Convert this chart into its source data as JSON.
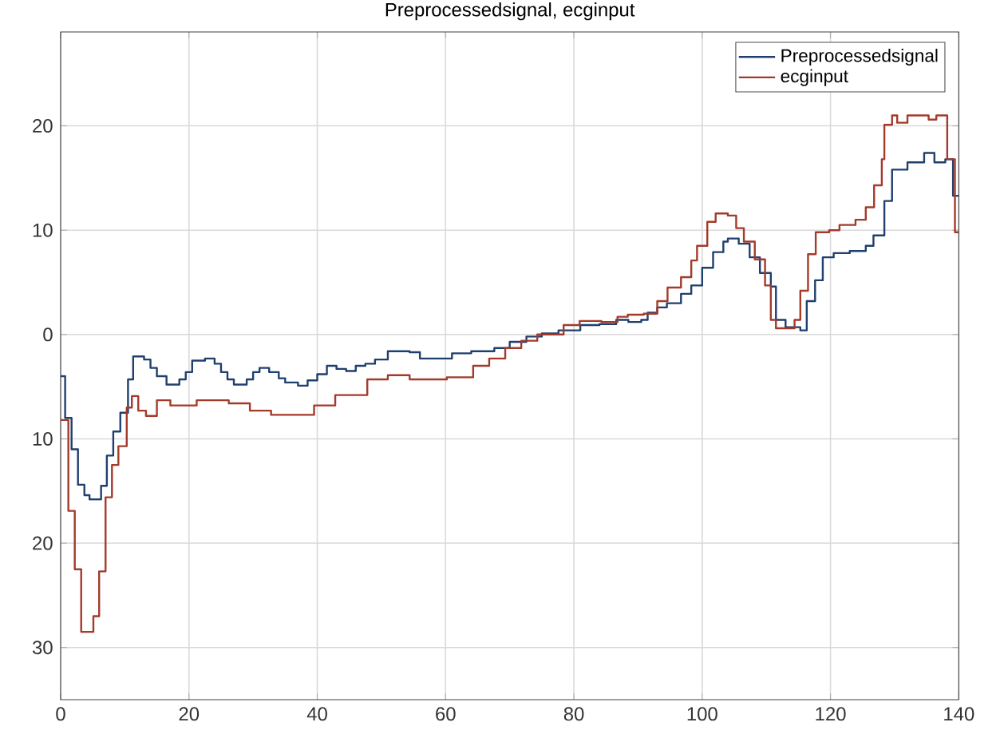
{
  "chart_data": {
    "type": "step",
    "title": "Preprocessedsignal, ecginput",
    "xlim": [
      0,
      140
    ],
    "xticks": [
      0,
      20,
      40,
      60,
      80,
      100,
      120,
      140
    ],
    "ylim": [
      -35,
      29
    ],
    "yticks": [
      {
        "value": -30,
        "label": "30"
      },
      {
        "value": -20,
        "label": "20"
      },
      {
        "value": -10,
        "label": "10"
      },
      0,
      10,
      20
    ],
    "grid": true,
    "legend": "top right",
    "series": [
      {
        "name": "Preprocessedsignal",
        "color": "#1f3f6e",
        "x": [
          0,
          0.7,
          1.7,
          2.7,
          3.7,
          4.5,
          6.3,
          7.2,
          8.2,
          9.3,
          10.5,
          11.3,
          13,
          14,
          15,
          16.5,
          18.5,
          19.5,
          20.5,
          22.5,
          24,
          25,
          26,
          27,
          29,
          30,
          31,
          32.5,
          34,
          35,
          37,
          38.5,
          40,
          41.5,
          43,
          44.5,
          46,
          47.5,
          49,
          51,
          54.4,
          56,
          61,
          64,
          67.6,
          70,
          72.6,
          75,
          77.6,
          81,
          84,
          86.6,
          88.5,
          90.5,
          91.5,
          93,
          94.5,
          96.7,
          98.3,
          100,
          101.7,
          103.3,
          104,
          105.7,
          107.4,
          109,
          110.7,
          111.5,
          113,
          115.3,
          116.3,
          117.6,
          118.8,
          120.5,
          123,
          125.5,
          126.7,
          128.4,
          129.6,
          132,
          134.6,
          136.2,
          137.9,
          139.1,
          140
        ],
        "values": [
          -4,
          -8,
          -11,
          -14.4,
          -15.4,
          -15.8,
          -14.5,
          -11.6,
          -9.3,
          -7.5,
          -4.3,
          -2.1,
          -2.4,
          -3.2,
          -4.0,
          -4.8,
          -4.3,
          -3.6,
          -2.5,
          -2.3,
          -2.8,
          -3.6,
          -4.3,
          -4.8,
          -4.3,
          -3.6,
          -3.2,
          -3.6,
          -4.2,
          -4.6,
          -4.9,
          -4.4,
          -3.8,
          -3.0,
          -3.3,
          -3.5,
          -3.0,
          -2.8,
          -2.4,
          -1.6,
          -1.7,
          -2.3,
          -1.8,
          -1.6,
          -1.3,
          -0.7,
          -0.2,
          0.1,
          0.4,
          0.9,
          1.0,
          1.4,
          1.2,
          1.4,
          2.1,
          2.6,
          3.0,
          3.9,
          4.7,
          6.4,
          7.9,
          8.9,
          9.2,
          8.7,
          7.4,
          5.9,
          4.6,
          1.4,
          0.7,
          0.4,
          3.2,
          5.2,
          7.4,
          7.8,
          8.0,
          8.5,
          9.5,
          12.8,
          15.8,
          16.5,
          17.4,
          16.5,
          16.8,
          13.3,
          13.3
        ]
      },
      {
        "name": "ecginput",
        "color": "#a33a2a",
        "x": [
          0,
          1.2,
          2.2,
          3.2,
          5.1,
          6.0,
          7.0,
          8.0,
          9.0,
          10.3,
          11.1,
          12.1,
          13.3,
          15,
          17.1,
          21.2,
          26.2,
          29.5,
          32.8,
          39.5,
          42.8,
          47.8,
          51,
          54.4,
          60.2,
          64.3,
          66.8,
          69.3,
          71.8,
          74.3,
          78.4,
          80.9,
          84.3,
          86.8,
          88.4,
          90.9,
          93,
          94.6,
          96.7,
          98.3,
          99.2,
          100.8,
          102.1,
          104,
          105.3,
          106.5,
          108.2,
          109.8,
          110.7,
          111.5,
          114.4,
          115.3,
          116.5,
          117.7,
          119.8,
          121.4,
          123.9,
          125.5,
          126.8,
          128,
          128.4,
          129.6,
          130.4,
          132,
          135.3,
          136.5,
          138.2,
          139.4,
          140
        ],
        "values": [
          -8.2,
          -16.9,
          -22.5,
          -28.5,
          -27,
          -22.7,
          -15.6,
          -12.5,
          -10.7,
          -7,
          -5.9,
          -7.3,
          -7.8,
          -6.3,
          -6.8,
          -6.3,
          -6.6,
          -7.3,
          -7.7,
          -6.8,
          -5.8,
          -4.3,
          -3.9,
          -4.3,
          -4.1,
          -3.0,
          -2.3,
          -1.3,
          -0.6,
          0.0,
          0.9,
          1.3,
          1.2,
          1.7,
          1.9,
          2.0,
          3.2,
          4.5,
          5.5,
          7.1,
          8.5,
          10.8,
          11.6,
          11.4,
          10.2,
          8.9,
          7.2,
          4.7,
          1.4,
          0.6,
          1.4,
          4.2,
          7.7,
          9.8,
          10.0,
          10.5,
          11.0,
          12.2,
          14.3,
          16.8,
          20.1,
          21.0,
          20.3,
          21.0,
          20.6,
          21.0,
          16.8,
          9.8,
          9.8
        ]
      }
    ]
  }
}
